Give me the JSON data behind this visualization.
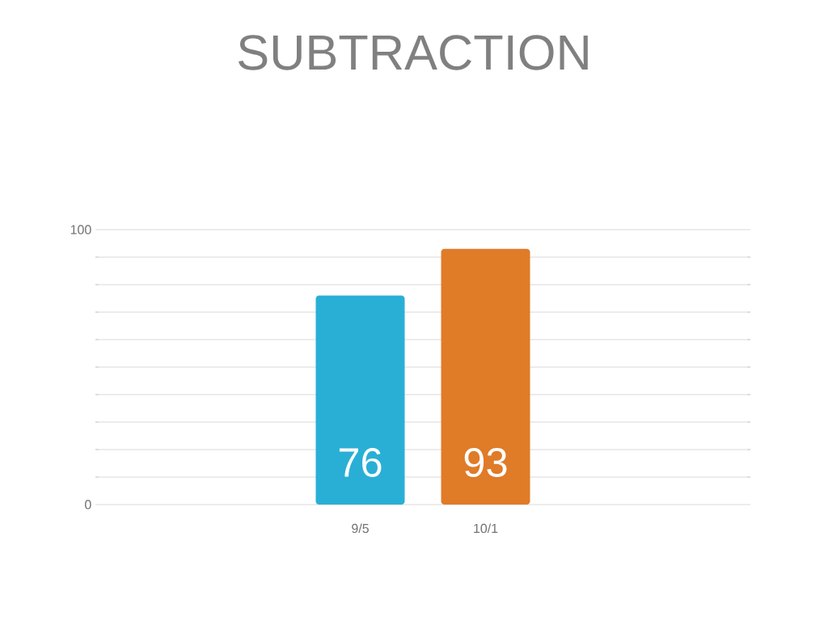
{
  "chart_data": {
    "type": "bar",
    "title": "SUBTRACTION",
    "categories": [
      "9/5",
      "10/1"
    ],
    "values": [
      76,
      93
    ],
    "colors": [
      "#29afd6",
      "#e07b28"
    ],
    "ylim": [
      0,
      100
    ],
    "yticks": [
      0,
      100
    ],
    "grid": "y",
    "data_labels": true
  }
}
